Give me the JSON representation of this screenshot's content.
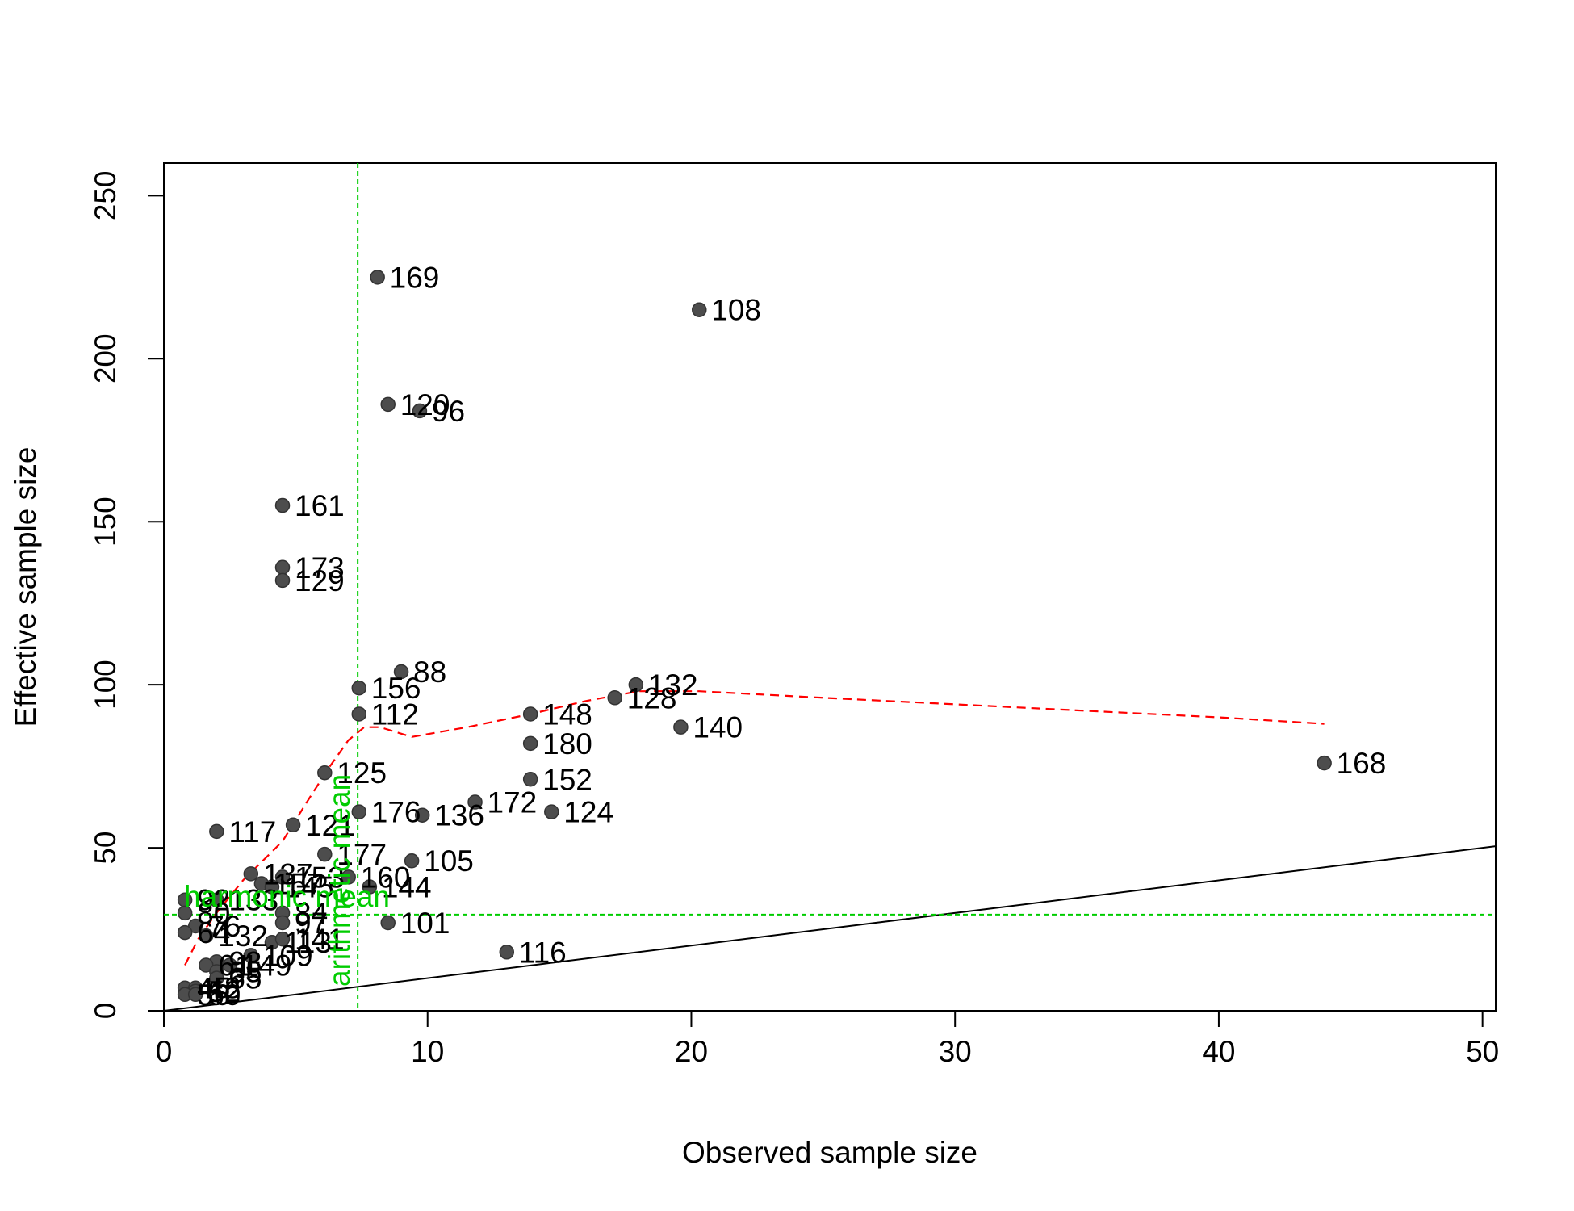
{
  "chart_data": {
    "type": "scatter",
    "xlabel": "Observed sample size",
    "ylabel": "Effective sample size",
    "xlim": [
      0,
      50.5
    ],
    "ylim": [
      0,
      260
    ],
    "x_ticks": [
      0,
      10,
      20,
      30,
      40,
      50
    ],
    "y_ticks": [
      0,
      50,
      100,
      150,
      200,
      250
    ],
    "grid": false,
    "points": [
      {
        "label": "169",
        "x": 8.1,
        "y": 225
      },
      {
        "label": "108",
        "x": 20.3,
        "y": 215
      },
      {
        "label": "120",
        "x": 8.5,
        "y": 186
      },
      {
        "label": "96",
        "x": 9.7,
        "y": 184
      },
      {
        "label": "161",
        "x": 4.5,
        "y": 155
      },
      {
        "label": "173",
        "x": 4.5,
        "y": 136
      },
      {
        "label": "129",
        "x": 4.5,
        "y": 132
      },
      {
        "label": "88",
        "x": 9.0,
        "y": 104
      },
      {
        "label": "132",
        "x": 17.9,
        "y": 100
      },
      {
        "label": "156",
        "x": 7.4,
        "y": 99
      },
      {
        "label": "128",
        "x": 17.1,
        "y": 96
      },
      {
        "label": "148",
        "x": 13.9,
        "y": 91
      },
      {
        "label": "112",
        "x": 7.4,
        "y": 91
      },
      {
        "label": "140",
        "x": 19.6,
        "y": 87
      },
      {
        "label": "180",
        "x": 13.9,
        "y": 82
      },
      {
        "label": "168",
        "x": 44.0,
        "y": 76
      },
      {
        "label": "125",
        "x": 6.1,
        "y": 73
      },
      {
        "label": "152",
        "x": 13.9,
        "y": 71
      },
      {
        "label": "172",
        "x": 11.8,
        "y": 64
      },
      {
        "label": "176",
        "x": 7.4,
        "y": 61
      },
      {
        "label": "136",
        "x": 9.8,
        "y": 60
      },
      {
        "label": "124",
        "x": 14.7,
        "y": 61
      },
      {
        "label": "117",
        "x": 2.0,
        "y": 55
      },
      {
        "label": "121",
        "x": 4.9,
        "y": 57
      },
      {
        "label": "177",
        "x": 6.1,
        "y": 48
      },
      {
        "label": "105",
        "x": 9.4,
        "y": 46
      },
      {
        "label": "137",
        "x": 3.3,
        "y": 42
      },
      {
        "label": "153",
        "x": 4.5,
        "y": 41
      },
      {
        "label": "160",
        "x": 7.0,
        "y": 41
      },
      {
        "label": "144",
        "x": 7.8,
        "y": 38
      },
      {
        "label": "157",
        "x": 3.7,
        "y": 39
      },
      {
        "label": "145",
        "x": 4.1,
        "y": 38
      },
      {
        "label": "92",
        "x": 0.8,
        "y": 34
      },
      {
        "label": "133",
        "x": 2.0,
        "y": 34
      },
      {
        "label": "80",
        "x": 0.8,
        "y": 30
      },
      {
        "label": "84",
        "x": 4.5,
        "y": 30
      },
      {
        "label": "97",
        "x": 4.5,
        "y": 27
      },
      {
        "label": "101",
        "x": 8.5,
        "y": 27
      },
      {
        "label": "76",
        "x": 1.2,
        "y": 26
      },
      {
        "label": "116",
        "x": 13.0,
        "y": 18
      },
      {
        "label": "64",
        "x": 0.8,
        "y": 24
      },
      {
        "label": "132",
        "x": 1.6,
        "y": 23
      },
      {
        "label": "113",
        "x": 4.1,
        "y": 21
      },
      {
        "label": "141",
        "x": 4.5,
        "y": 22
      },
      {
        "label": "109",
        "x": 3.3,
        "y": 17
      },
      {
        "label": "93",
        "x": 2.0,
        "y": 15
      },
      {
        "label": "61",
        "x": 1.6,
        "y": 14
      },
      {
        "label": "149",
        "x": 2.5,
        "y": 14
      },
      {
        "label": "85",
        "x": 2.0,
        "y": 12
      },
      {
        "label": "65",
        "x": 2.0,
        "y": 10
      },
      {
        "label": "45",
        "x": 0.8,
        "y": 7
      },
      {
        "label": "48",
        "x": 1.2,
        "y": 7
      },
      {
        "label": "52",
        "x": 1.2,
        "y": 6
      },
      {
        "label": "56",
        "x": 0.8,
        "y": 5
      },
      {
        "label": "60",
        "x": 1.2,
        "y": 5
      }
    ],
    "trend_line": {
      "style": "dashed",
      "color": "#ff0000",
      "x": [
        0.8,
        1.3,
        2.0,
        3.0,
        4.5,
        5.5,
        6.3,
        7.0,
        7.6,
        8.2,
        9.4,
        11.5,
        13.9,
        16.0,
        18.0,
        20.3,
        25.0,
        30.0,
        35.0,
        40.0,
        44.0
      ],
      "y": [
        14,
        22,
        30,
        40,
        52,
        65,
        75,
        83,
        87,
        87,
        84,
        87,
        91,
        95,
        98,
        98,
        96,
        94,
        92,
        90,
        88
      ]
    },
    "reference_line": {
      "slope": 1,
      "intercept": 0,
      "color": "#000000"
    },
    "vline": {
      "x": 7.35,
      "label": "arithmetic mean",
      "color": "#00cc00"
    },
    "hline": {
      "y": 29.5,
      "label": "harmonic mean",
      "color": "#00cc00"
    },
    "point_color": "#4d4d4d"
  }
}
